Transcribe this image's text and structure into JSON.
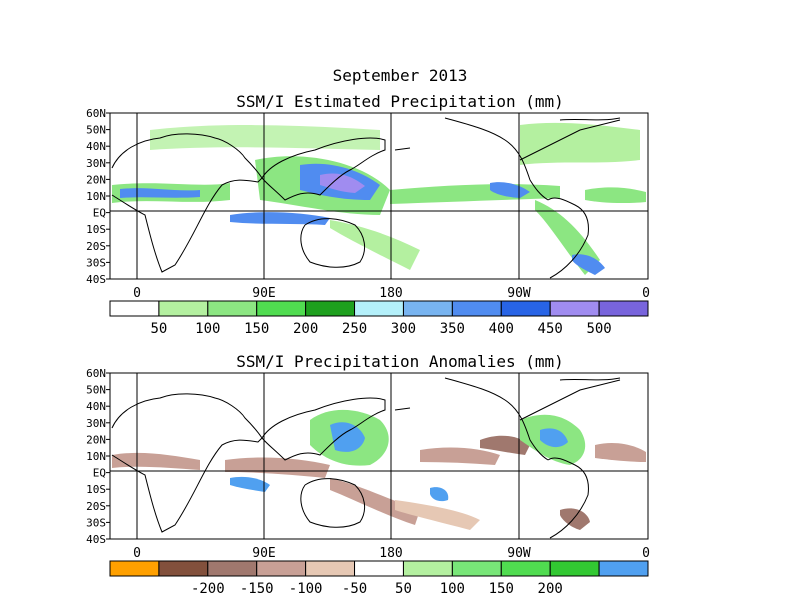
{
  "header": {
    "title": "September 2013",
    "panel1_title": "SSM/I Estimated Precipitation (mm)",
    "panel2_title": "SSM/I Precipitation Anomalies (mm)"
  },
  "axes": {
    "lat_labels": [
      "60N",
      "50N",
      "40N",
      "30N",
      "20N",
      "10N",
      "EQ",
      "10S",
      "20S",
      "30S",
      "40S"
    ],
    "lon_labels": [
      "0",
      "90E",
      "180",
      "90W",
      "0"
    ]
  },
  "colorbar1": {
    "colors": [
      "#ffffff",
      "#b4f0a0",
      "#8ce682",
      "#50dc50",
      "#1ea01e",
      "#b4f0fa",
      "#78b4f0",
      "#508cf0",
      "#2864e6",
      "#a08cf0",
      "#7864dc"
    ],
    "labels": [
      "50",
      "100",
      "150",
      "200",
      "250",
      "300",
      "350",
      "400",
      "450",
      "500"
    ]
  },
  "colorbar2": {
    "colors": [
      "#ffa000",
      "#82503c",
      "#a0786e",
      "#c8a096",
      "#e6c8b4",
      "#ffffff",
      "#b4f0a0",
      "#78e678",
      "#50dc50",
      "#32c832",
      "#50a0f0"
    ],
    "labels": [
      "-200",
      "-150",
      "-100",
      "-50",
      "50",
      "100",
      "150",
      "200"
    ]
  }
}
